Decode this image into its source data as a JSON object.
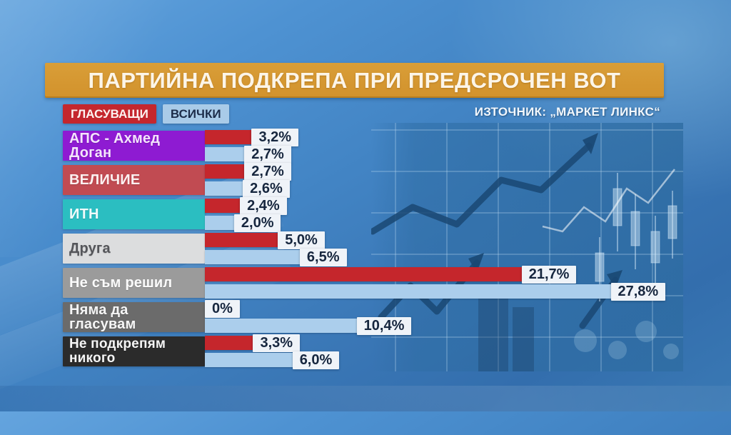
{
  "title": "ПАРТИЙНА ПОДКРЕПА ПРИ ПРЕДСРОЧЕН ВОТ",
  "source": "ИЗТОЧНИК: „МАРКЕТ ЛИНКС“",
  "legend": {
    "voters": "ГЛАСУВАЩИ",
    "all": "ВСИЧКИ"
  },
  "colors": {
    "title_bg": "#d4942f",
    "bar_voters": "#c5262c",
    "bar_all": "#abceec",
    "legend_voters_bg": "#c4272e",
    "legend_voters_fg": "#fdf4f2",
    "legend_all_bg": "#a9cbe8",
    "legend_all_fg": "#1c2c49",
    "value_chip_bg": "#eff3f8",
    "value_chip_fg": "#16263e"
  },
  "rows": [
    {
      "label": "АПС - Ахмед Доган",
      "bg": "#8e1bd2",
      "fg": "#f4e4fc",
      "voters_label": "3,2%",
      "all_label": "2,7%"
    },
    {
      "label": "ВЕЛИЧИЕ",
      "bg": "#c14b52",
      "fg": "#fcf0f0",
      "voters_label": "2,7%",
      "all_label": "2,6%"
    },
    {
      "label": "ИТН",
      "bg": "#2bbec1",
      "fg": "#f0fbfb",
      "voters_label": "2,4%",
      "all_label": "2,0%"
    },
    {
      "label": "Друга",
      "bg": "#dcddde",
      "fg": "#55565a",
      "voters_label": "5,0%",
      "all_label": "6,5%"
    },
    {
      "label": "Не съм решил",
      "bg": "#9b9b9b",
      "fg": "#fbfbfb",
      "voters_label": "21,7%",
      "all_label": "27,8%"
    },
    {
      "label": "Няма да гласувам",
      "bg": "#6b6b6b",
      "fg": "#f5f5f5",
      "voters_label": "0%",
      "all_label": "10,4%"
    },
    {
      "label": "Не подкрепям никого",
      "bg": "#2b2b2b",
      "fg": "#f5f5f5",
      "voters_label": "3,3%",
      "all_label": "6,0%"
    }
  ],
  "chart_data": {
    "type": "bar",
    "orientation": "horizontal",
    "title": "ПАРТИЙНА ПОДКРЕПА ПРИ ПРЕДСРОЧЕН ВОТ",
    "source": "ИЗТОЧНИК: „МАРКЕТ ЛИНКС“",
    "unit": "%",
    "categories": [
      "АПС - Ахмед Доган",
      "ВЕЛИЧИЕ",
      "ИТН",
      "Друга",
      "Не съм решил",
      "Няма да гласувам",
      "Не подкрепям никого"
    ],
    "series": [
      {
        "name": "ГЛАСУВАЩИ",
        "color": "#c5262c",
        "values": [
          3.2,
          2.7,
          2.4,
          5.0,
          21.7,
          0,
          3.3
        ]
      },
      {
        "name": "ВСИЧКИ",
        "color": "#abceec",
        "values": [
          2.7,
          2.6,
          2.0,
          6.5,
          27.8,
          10.4,
          6.0
        ]
      }
    ],
    "xlim": [
      0,
      30
    ],
    "legend_position": "top-left",
    "value_labels": true
  }
}
